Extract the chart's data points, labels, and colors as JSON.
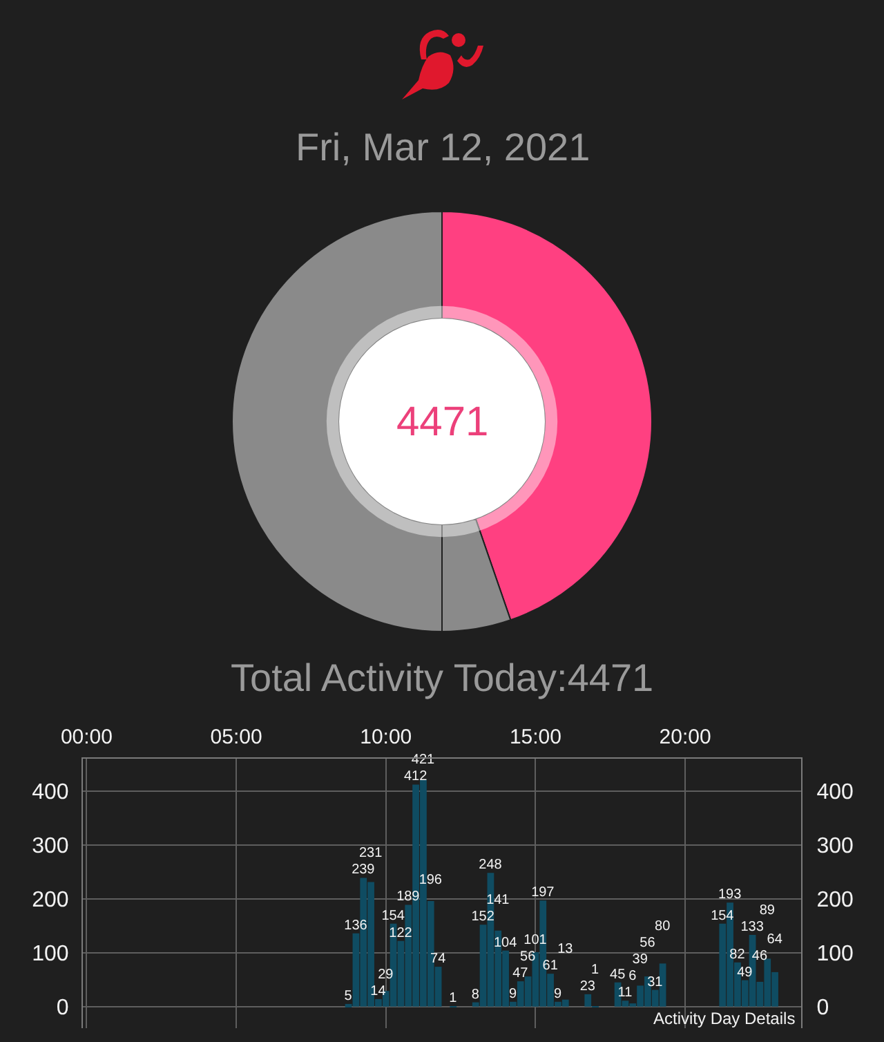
{
  "chart_data": [
    {
      "type": "donut",
      "title": "Fri, Mar 12, 2021",
      "categories": [
        null,
        null,
        null
      ],
      "values": [
        44.7,
        5.3,
        50
      ],
      "colors": [
        "#ff4081",
        "#8a8a8a",
        "#8a8a8a"
      ],
      "annotations": [
        "4471",
        "Total Activity Today:4471"
      ]
    },
    {
      "type": "bar",
      "x": [
        8.75,
        9,
        9.25,
        9.5,
        9.75,
        10,
        10.25,
        10.5,
        10.75,
        11,
        11.25,
        11.5,
        11.75,
        12.25,
        13,
        13.25,
        13.5,
        13.75,
        14,
        14.25,
        14.5,
        14.75,
        15,
        15.25,
        15.5,
        15.75,
        16,
        16.75,
        17,
        17.75,
        18,
        18.25,
        18.5,
        18.75,
        19,
        19.25,
        21.25,
        21.5,
        21.75,
        22,
        22.25,
        22.5,
        22.75,
        23
      ],
      "values": [
        5,
        136,
        239,
        231,
        14,
        29,
        154,
        122,
        189,
        412,
        421,
        196,
        74,
        1,
        8,
        152,
        248,
        141,
        104,
        9,
        47,
        56,
        101,
        197,
        61,
        9,
        13,
        23,
        1,
        45,
        11,
        6,
        39,
        56,
        31,
        80,
        154,
        193,
        82,
        49,
        133,
        46,
        89,
        64
      ],
      "color": "#0f4c62",
      "data_labels": true,
      "grid": true,
      "xlim": [
        -0.125,
        23.875
      ],
      "xticks": [
        {
          "value": 0,
          "label": "00:00"
        },
        {
          "value": 5,
          "label": "05:00"
        },
        {
          "value": 10,
          "label": "10:00"
        },
        {
          "value": 15,
          "label": "15:00"
        },
        {
          "value": 20,
          "label": "20:00"
        }
      ],
      "ylim": [
        -40,
        460
      ],
      "yticks": [
        0,
        100,
        200,
        300,
        400
      ],
      "y2lim": [
        -40,
        460
      ],
      "y2ticks": [
        0,
        100,
        200,
        300,
        400
      ],
      "annotations": [
        "Activity Day Details"
      ]
    }
  ]
}
